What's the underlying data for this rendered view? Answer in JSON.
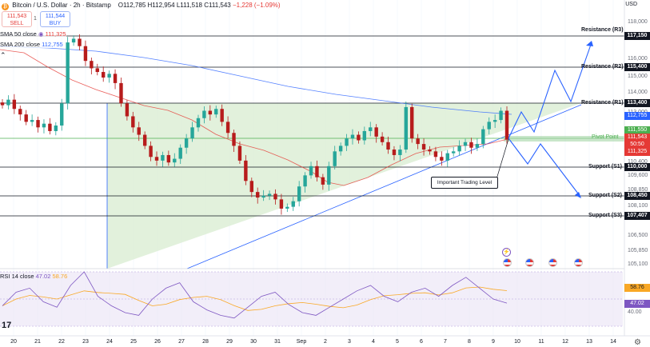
{
  "header": {
    "title": "Bitcoin / U.S. Dollar · 2h · Bitstamp",
    "ohlc": "O112,785 H112,954 L111,518 C111,543",
    "change": "−1,228 (−1.09%)"
  },
  "trade": {
    "sell_price": "111,543",
    "sell_label": "SELL",
    "spread": "1",
    "buy_price": "111,544",
    "buy_label": "BUY"
  },
  "indicators": {
    "sma50": {
      "name": "SMA 50 close",
      "value": "111,325"
    },
    "sma200": {
      "name": "SMA 200 close",
      "value": "112,755"
    }
  },
  "axis": {
    "currency": "USD",
    "price_labels": [
      "118,000",
      "116,000",
      "115,000",
      "114,000",
      "113,000",
      "110,400",
      "109,600",
      "108,850",
      "108,100",
      "106,500",
      "105,850",
      "105,100"
    ],
    "time_labels": [
      "20",
      "21",
      "22",
      "23",
      "24",
      "25",
      "26",
      "27",
      "28",
      "29",
      "30",
      "31",
      "Sep",
      "2",
      "3",
      "4",
      "5",
      "6",
      "7",
      "8",
      "9",
      "10",
      "11",
      "12",
      "13",
      "14"
    ]
  },
  "levels": {
    "r3": {
      "label": "Resistance (R3)",
      "value": "117,150"
    },
    "r2": {
      "label": "Resistance (R2)",
      "value": "115,400"
    },
    "r1": {
      "label": "Resistance (R1)",
      "value": "113,400"
    },
    "pivot": {
      "label": "Pivot Point",
      "value": "111,550"
    },
    "s1": {
      "label": "Support (S1)",
      "value": "110,000"
    },
    "s2": {
      "label": "Support (S2)",
      "value": "108,450"
    },
    "s3": {
      "label": "Support (S3)",
      "value": "107,407"
    }
  },
  "price_tags": {
    "sma200": "112,755",
    "current": "111,543",
    "countdown": "50:50",
    "sma50": "111,325"
  },
  "annotation": "Important Trading Level",
  "rsi": {
    "name": "RSI 14 close",
    "value": "47.02",
    "ma_value": "58.76",
    "axis_labels": [
      "40.00"
    ]
  },
  "colors": {
    "up": "#26a69a",
    "down": "#b71c1c",
    "sma50": "#e53935",
    "sma200": "#2962ff",
    "triangle_fill": "#d8ecd0",
    "pivot": "#4caf50",
    "rsi_line": "#7e57c2",
    "rsi_ma": "#f9a825"
  },
  "chart_data": {
    "type": "candlestick",
    "symbol": "BTCUSD",
    "interval": "2h",
    "close_approx": [
      113400,
      113700,
      113200,
      112900,
      112500,
      112600,
      112200,
      112400,
      112000,
      112300,
      113500,
      116800,
      117000,
      116600,
      115800,
      115400,
      115200,
      114900,
      115100,
      114600,
      113500,
      112800,
      112200,
      111800,
      111200,
      110600,
      110400,
      110700,
      110300,
      110500,
      111100,
      111600,
      112200,
      112700,
      113100,
      112900,
      113200,
      112500,
      111900,
      111200,
      110400,
      109300,
      108700,
      108400,
      108500,
      108600,
      108300,
      107800,
      107900,
      108200,
      109000,
      109600,
      110100,
      109500,
      109100,
      110100,
      110900,
      111200,
      111600,
      111800,
      111500,
      112000,
      112200,
      111700,
      111400,
      111000,
      110700,
      111000,
      113300,
      111600,
      111300,
      111000,
      110900,
      110600,
      110400,
      110800,
      110900,
      111200,
      111400,
      111100,
      111300,
      112100,
      112500,
      112600,
      113100,
      111543
    ],
    "sma50_approx": [
      116200,
      115800,
      115400,
      115000,
      114600,
      114200,
      113800,
      113500,
      113300,
      113000,
      112700,
      112300,
      111900,
      111500,
      111100,
      110700,
      110400,
      110100,
      109900,
      109700,
      109600,
      109500,
      109600,
      109800,
      110000,
      110300,
      110500,
      110700,
      110900,
      111000,
      111100,
      111200,
      111325
    ],
    "sma200_approx": [
      115600,
      115500,
      115300,
      115100,
      114900,
      114700,
      114500,
      114300,
      114100,
      113900,
      113700,
      113600,
      113450,
      113300,
      113200,
      113100,
      113000,
      112900,
      112850,
      112800,
      112755
    ],
    "rsi_approx": [
      45,
      55,
      58,
      48,
      44,
      60,
      70,
      52,
      45,
      40,
      38,
      50,
      58,
      62,
      48,
      42,
      38,
      36,
      44,
      52,
      55,
      46,
      40,
      38,
      44,
      50,
      56,
      60,
      52,
      48,
      55,
      58,
      52,
      60,
      66,
      58,
      50,
      47.02
    ]
  }
}
